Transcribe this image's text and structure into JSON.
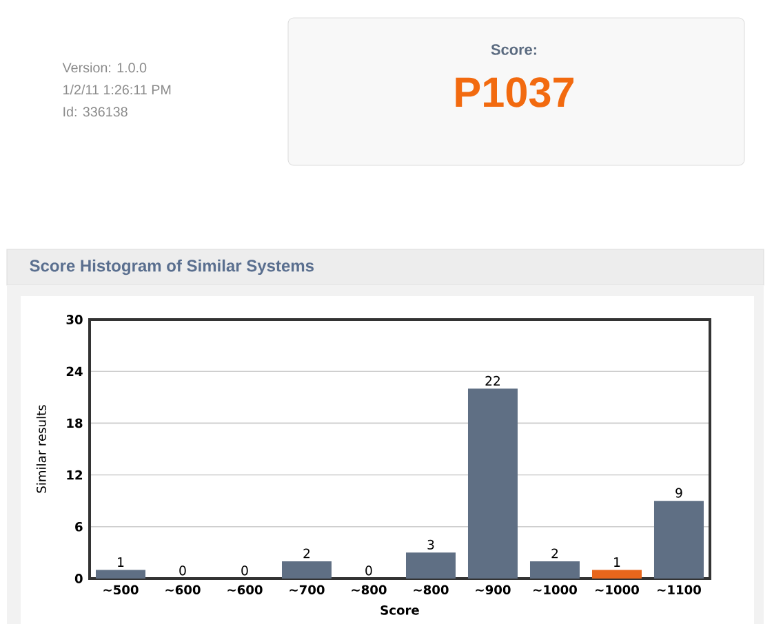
{
  "chart_data": {
    "type": "bar",
    "title": "Score Histogram of Similar Systems",
    "xlabel": "Score",
    "ylabel": "Similar results",
    "annotations": [
      "Version: 1.0.0",
      "1/2/11 1:26:11 PM",
      "Id: 336138",
      "Score:",
      "P1037"
    ],
    "categories": [
      "~500",
      "~600",
      "~600",
      "~700",
      "~800",
      "~800",
      "~900",
      "~1000",
      "~1000",
      "~1100"
    ],
    "values": [
      1,
      0,
      0,
      2,
      0,
      3,
      22,
      2,
      1,
      9
    ],
    "colors": [
      "#5f6f84",
      "#5f6f84",
      "#5f6f84",
      "#5f6f84",
      "#5f6f84",
      "#5f6f84",
      "#5f6f84",
      "#5f6f84",
      "#e8661c",
      "#5f6f84"
    ],
    "ylim": [
      0,
      30
    ],
    "yticks": [
      0,
      6,
      12,
      18,
      24,
      30
    ],
    "grid": "y",
    "data_labels": true
  }
}
